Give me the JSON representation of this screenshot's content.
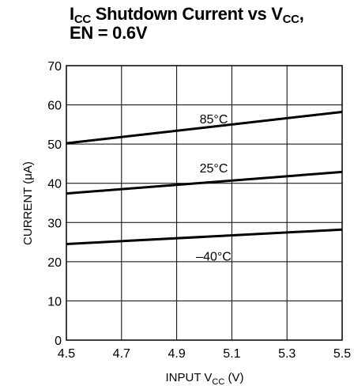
{
  "chart_data": {
    "type": "line",
    "title": {
      "line1_main": "I",
      "line1_sub": "CC",
      "line1_mid": " Shutdown Current vs V",
      "line1_sub2": "CC",
      "line1_end": ",",
      "line2": "EN = 0.6V"
    },
    "xlabel": {
      "main": "INPUT V",
      "sub": "CC",
      "end": " (V)"
    },
    "ylabel": "CURRENT (μA)",
    "xlim": [
      4.5,
      5.5
    ],
    "ylim": [
      0,
      70
    ],
    "xticks": [
      4.5,
      4.7,
      4.9,
      5.1,
      5.3,
      5.5
    ],
    "xtick_labels": [
      "4.5",
      "4.7",
      "4.9",
      "5.1",
      "5.3",
      "5.5"
    ],
    "yticks": [
      0,
      10,
      20,
      30,
      40,
      50,
      60,
      70
    ],
    "ytick_labels": [
      "0",
      "10",
      "20",
      "30",
      "40",
      "50",
      "60",
      "70"
    ],
    "grid": true,
    "series": [
      {
        "name": "85°C",
        "x": [
          4.5,
          5.5
        ],
        "y": [
          50.2,
          58.2
        ],
        "label_at": [
          5.0,
          56.5
        ]
      },
      {
        "name": "25°C",
        "x": [
          4.5,
          5.5
        ],
        "y": [
          37.4,
          42.9
        ],
        "label_at": [
          5.0,
          44.0
        ]
      },
      {
        "name": "–40°C",
        "x": [
          4.5,
          5.5
        ],
        "y": [
          24.5,
          28.2
        ],
        "label_at": [
          5.0,
          21.5
        ]
      }
    ]
  }
}
